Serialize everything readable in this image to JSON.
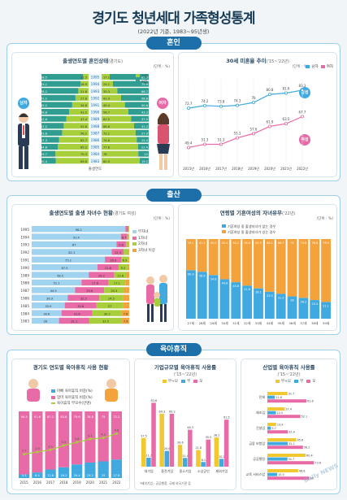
{
  "header": {
    "title": "경기도 청년세대 가족형성통계",
    "subtitle": "(2022년 기준, 1983~95년생)"
  },
  "sections": {
    "marriage": "혼인",
    "birth": "출산",
    "childcare": "육아휴직"
  },
  "colors": {
    "blue": "#3fa9e0",
    "green": "#a7cf3a",
    "pink": "#e86aa6",
    "orange": "#f4a33c",
    "navy": "#1c6fa9",
    "lightblue": "#9fd3ef",
    "purple": "#8a7bc4",
    "yellow": "#f2c830"
  },
  "cards": {
    "marriage_status": {
      "title": "출생연도별 혼인상태",
      "title_sm": "(경기도)",
      "unit": "(단위 : %)",
      "axis": "출생연도",
      "badge_m": "남자",
      "badge_f": "여자"
    },
    "unmarried_rate": {
      "title": "30세 미혼율 추이",
      "title_sm": "('15~'22년)",
      "unit": "(단위 : %)",
      "badge_m": "남성",
      "badge_f": "여성"
    },
    "children_by_birth": {
      "title": "출생연도별 출생 자녀수 현황",
      "title_sm": "(경기도 여성)",
      "unit": "(단위 : %)"
    },
    "childless_married": {
      "title": "연령별 기혼여성의 자녀유무",
      "title_sm": "('22년)",
      "unit": "(단위 : %)"
    },
    "parental_leave_year": {
      "title": "경기도 연도별 육아휴직 사용 현황"
    },
    "parental_leave_size": {
      "title": "기업규모별 육아휴직 사용률",
      "title_sm": "('15~'22년)"
    },
    "parental_leave_industry": {
      "title": "산업별 육아휴직 사용률",
      "title_sm": "('15~'22년)"
    }
  },
  "chart_data": [
    {
      "type": "bar",
      "name": "marriage_status",
      "orientation": "horizontal-diverging",
      "categories": [
        "1983",
        "1984",
        "1985",
        "1986",
        "1987",
        "1988",
        "1989",
        "1990",
        "1991",
        "1992",
        "1993",
        "1994",
        "1995"
      ],
      "series": [
        {
          "name": "기혼",
          "side": "male",
          "values": [
            69.6,
            70.3,
            65.2,
            62.7,
            56.2,
            52.8,
            47.4,
            41.2,
            34.8,
            27.8,
            21.8,
            16.9,
            11.5
          ]
        },
        {
          "name": "미혼",
          "side": "male",
          "values": [
            30.4,
            29.7,
            34.8,
            37.3,
            43.8,
            47.2,
            52.6,
            58.8,
            65.2,
            72.2,
            78.2,
            83.1,
            88.5
          ]
        },
        {
          "name": "기혼",
          "side": "female",
          "values": [
            80.9,
            78.0,
            77.6,
            74.6,
            72.1,
            68.8,
            62.5,
            56.7,
            49.4,
            41.4,
            33.3,
            24.1,
            17.1
          ]
        },
        {
          "name": "미혼",
          "side": "female",
          "values": [
            19.1,
            22.0,
            22.4,
            25.4,
            27.9,
            31.2,
            37.5,
            43.3,
            50.6,
            58.6,
            66.7,
            75.9,
            82.9
          ]
        }
      ],
      "legend": [
        "기혼",
        "미혼"
      ]
    },
    {
      "type": "line",
      "name": "unmarried_rate",
      "x": [
        "2015년",
        "2016년",
        "2017년",
        "2018년",
        "2019년",
        "2020년",
        "2021년",
        "2022년"
      ],
      "series": [
        {
          "name": "남자",
          "values": [
            72.7,
            74.2,
            73.8,
            74.3,
            76.0,
            80.8,
            81.6,
            83.3
          ]
        },
        {
          "name": "여자",
          "values": [
            49.4,
            51.3,
            51.3,
            55.1,
            57.6,
            61.9,
            63.5,
            67.7
          ]
        }
      ],
      "legend": [
        "남자",
        "여자"
      ]
    },
    {
      "type": "bar",
      "name": "children_by_birth",
      "orientation": "horizontal-stacked",
      "categories": [
        "1995",
        "1994",
        "1993",
        "1992",
        "1991",
        "1990",
        "1989",
        "1988",
        "1987",
        "1986",
        "1985",
        "1984",
        "1983"
      ],
      "series": [
        {
          "name": "무자녀",
          "values": [
            96.2,
            91.4,
            87.0,
            82.1,
            75.1,
            67.5,
            58.5,
            51.1,
            44.5,
            36.9,
            33.9,
            30.6,
            28.0
          ]
        },
        {
          "name": "1자녀",
          "values": [
            3.0,
            6.7,
            9.6,
            12.3,
            16.9,
            21.6,
            26.2,
            27.8,
            29.8,
            32.5,
            32.6,
            31.6,
            31.1
          ]
        },
        {
          "name": "2자녀",
          "values": [
            0.7,
            1.7,
            2.9,
            5.0,
            6.9,
            9.2,
            12.8,
            17.1,
            20.3,
            24.5,
            27.0,
            30.2,
            33.5
          ]
        },
        {
          "name": "3자녀 이상",
          "values": [
            0.1,
            0.2,
            0.5,
            0.6,
            1.1,
            1.7,
            2.5,
            4.0,
            5.4,
            6.1,
            6.5,
            7.6,
            7.4
          ]
        }
      ],
      "legend": [
        "무자녀",
        "1자녀",
        "2자녀",
        "3자녀 이상"
      ]
    },
    {
      "type": "bar",
      "name": "childless_married",
      "orientation": "vertical-stacked",
      "categories": [
        "27세",
        "28세",
        "29세",
        "30세",
        "31세",
        "32세",
        "33세",
        "34세",
        "35세",
        "36세",
        "37세",
        "38세",
        "39세"
      ],
      "series": [
        {
          "name": "기혼여성 중 출생자녀가 없는 경우",
          "values": [
            60.9,
            58.9,
            54.8,
            49.6,
            45.8,
            41.6,
            38.1,
            33.9,
            31.3,
            28.0,
            26.2,
            23.4,
            21.1
          ]
        },
        {
          "name": "기혼여성 중 출생자녀가 있는 경우",
          "values": [
            39.1,
            41.1,
            45.2,
            50.4,
            54.2,
            58.4,
            61.9,
            66.1,
            68.7,
            72.0,
            73.8,
            76.6,
            78.9
          ]
        }
      ],
      "legend": [
        "기혼여성 중 출생자녀가 없는 경우",
        "기혼여성 중 출생자녀가 있는 경우"
      ]
    },
    {
      "type": "bar",
      "name": "parental_leave_year",
      "orientation": "vertical-stacked-with-line",
      "categories": [
        "2015",
        "2016",
        "2017",
        "2018",
        "2019",
        "2020",
        "2021",
        "2022"
      ],
      "series": [
        {
          "name": "아빠 육아휴직 비중(%)",
          "values": [
            5.5,
            8.4,
            12.8,
            16.2,
            20.4,
            23.2,
            25.0,
            27.8
          ]
        },
        {
          "name": "엄마 육아휴직 비중(%)",
          "values": [
            94.5,
            91.6,
            87.2,
            83.8,
            79.6,
            76.8,
            75.0,
            72.2
          ]
        },
        {
          "name": "육아휴직 부모수(만명)",
          "values": [
            2.7,
            2.9,
            3.1,
            3.5,
            3.8,
            4.1,
            4.2,
            4.6
          ]
        }
      ],
      "legend": [
        "아빠 육아휴직 비중(%)",
        "엄마 육아휴직 비중(%)",
        "육아휴직 부모수(만명)"
      ]
    },
    {
      "type": "bar",
      "name": "parental_leave_size",
      "orientation": "vertical-grouped",
      "categories": [
        "대기업",
        "중견기업",
        "중소기업",
        "소상공인",
        "제외기업"
      ],
      "series": [
        {
          "name": "부+모",
          "values": [
            37.5,
            69.3,
            28.6,
            21.8,
            38.2
          ]
        },
        {
          "name": "부",
          "values": [
            11.7,
            20.6,
            11.4,
            6.1,
            10.2
          ]
        },
        {
          "name": "모",
          "values": [
            83.6,
            69.3,
            48.3,
            35.5,
            61.5
          ]
        }
      ],
      "legend": [
        "부+모",
        "부",
        "모"
      ],
      "note": "*제외기업 : 공공행정, 국제 외국기관 등"
    },
    {
      "type": "bar",
      "name": "parental_leave_industry",
      "orientation": "horizontal-grouped",
      "categories": [
        "전체",
        "제조업",
        "건설업",
        "금융 보험업",
        "공공행정",
        "교육 서비스업"
      ],
      "series": [
        {
          "name": "부+모",
          "values": [
            31.7,
            27.4,
            13.9,
            45.6,
            60.4,
            48.6
          ]
        },
        {
          "name": "부",
          "values": [
            11.8,
            13.5,
            5.7,
            32.2,
            31.7,
            15.5
          ]
        },
        {
          "name": "모",
          "values": [
            61.6,
            52.1,
            32.4,
            56.2,
            73.6,
            66.0
          ]
        }
      ],
      "legend": [
        "부+모",
        "부",
        "모"
      ]
    }
  ]
}
